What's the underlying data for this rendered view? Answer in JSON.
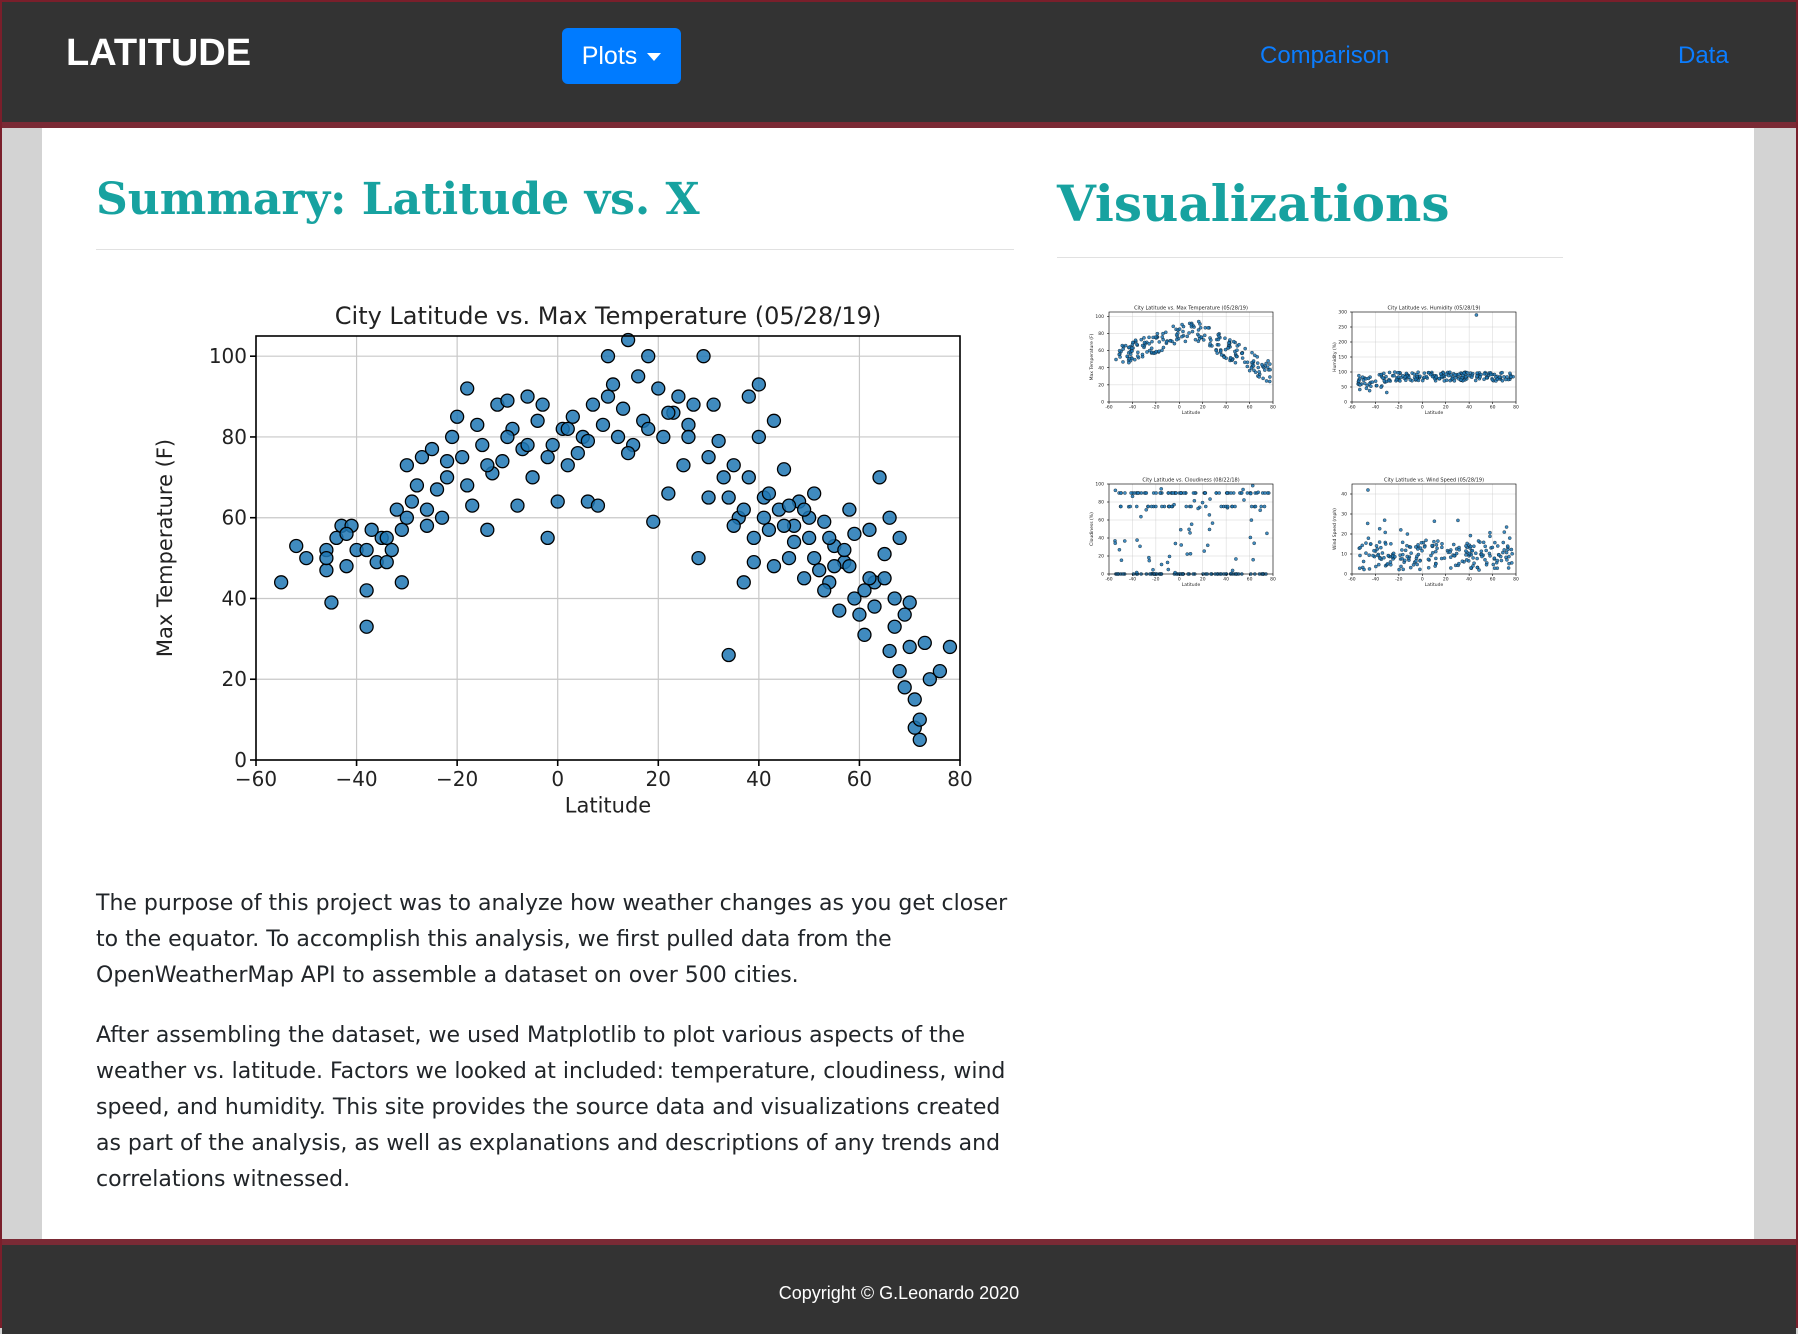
{
  "navbar": {
    "brand": "LATITUDE",
    "plots_label": "Plots",
    "links": [
      {
        "label": "Comparison"
      },
      {
        "label": "Data"
      }
    ]
  },
  "summary": {
    "title": "Summary: Latitude vs. X",
    "paragraphs": [
      "The purpose of this project was to analyze how weather changes as you get closer to the equator. To accomplish this analysis, we first pulled data from the OpenWeatherMap API to assemble a dataset on over 500 cities.",
      "After assembling the dataset, we used Matplotlib to plot various aspects of the weather vs. latitude. Factors we looked at included: temperature, cloudiness, wind speed, and humidity. This site provides the source data and visualizations created as part of the analysis, as well as explanations and descriptions of any trends and correlations witnessed."
    ]
  },
  "visualizations": {
    "title": "Visualizations"
  },
  "footer": {
    "copyright": "Copyright © G.Leonardo 2020"
  },
  "colors": {
    "accent": "#17a2a0",
    "navbar": "#333333",
    "link": "#0b7dff",
    "button": "#007bff",
    "marker": "#1f77b4"
  },
  "chart_data": [
    {
      "type": "scatter",
      "title": "City Latitude vs. Max Temperature (05/28/19)",
      "xlabel": "Latitude",
      "ylabel": "Max Temperature (F)",
      "xlim": [
        -60,
        80
      ],
      "ylim": [
        0,
        105
      ],
      "x_ticks": [
        -60,
        -40,
        -20,
        0,
        20,
        40,
        60,
        80
      ],
      "y_ticks": [
        0,
        20,
        40,
        60,
        80,
        100
      ],
      "x_tick_labels": [
        "−60",
        "−40",
        "−20",
        "0",
        "20",
        "40",
        "60",
        "80"
      ],
      "y_tick_labels": [
        "0",
        "20",
        "40",
        "60",
        "80",
        "100"
      ],
      "grid": true,
      "points": [
        [
          -55,
          44
        ],
        [
          -52,
          53
        ],
        [
          -50,
          50
        ],
        [
          -46,
          47
        ],
        [
          -46,
          52
        ],
        [
          -45,
          39
        ],
        [
          -44,
          55
        ],
        [
          -43,
          58
        ],
        [
          -42,
          48
        ],
        [
          -41,
          58
        ],
        [
          -40,
          52
        ],
        [
          -38,
          42
        ],
        [
          -38,
          33
        ],
        [
          -37,
          57
        ],
        [
          -36,
          49
        ],
        [
          -35,
          55
        ],
        [
          -34,
          49
        ],
        [
          -33,
          52
        ],
        [
          -32,
          62
        ],
        [
          -31,
          57
        ],
        [
          -31,
          44
        ],
        [
          -30,
          73
        ],
        [
          -29,
          64
        ],
        [
          -28,
          68
        ],
        [
          -27,
          75
        ],
        [
          -26,
          58
        ],
        [
          -25,
          77
        ],
        [
          -24,
          67
        ],
        [
          -23,
          60
        ],
        [
          -22,
          70
        ],
        [
          -21,
          80
        ],
        [
          -20,
          85
        ],
        [
          -19,
          75
        ],
        [
          -18,
          92
        ],
        [
          -17,
          63
        ],
        [
          -16,
          83
        ],
        [
          -15,
          78
        ],
        [
          -14,
          57
        ],
        [
          -13,
          71
        ],
        [
          -12,
          88
        ],
        [
          -11,
          74
        ],
        [
          -10,
          89
        ],
        [
          -9,
          82
        ],
        [
          -8,
          63
        ],
        [
          -7,
          77
        ],
        [
          -6,
          90
        ],
        [
          -5,
          70
        ],
        [
          -4,
          84
        ],
        [
          -3,
          88
        ],
        [
          -2,
          55
        ],
        [
          -1,
          78
        ],
        [
          0,
          64
        ],
        [
          1,
          82
        ],
        [
          2,
          73
        ],
        [
          3,
          85
        ],
        [
          4,
          76
        ],
        [
          5,
          80
        ],
        [
          6,
          64
        ],
        [
          7,
          88
        ],
        [
          8,
          63
        ],
        [
          9,
          83
        ],
        [
          10,
          100
        ],
        [
          11,
          93
        ],
        [
          12,
          80
        ],
        [
          13,
          87
        ],
        [
          14,
          104
        ],
        [
          15,
          78
        ],
        [
          16,
          95
        ],
        [
          17,
          84
        ],
        [
          18,
          100
        ],
        [
          19,
          59
        ],
        [
          20,
          92
        ],
        [
          21,
          80
        ],
        [
          22,
          66
        ],
        [
          23,
          86
        ],
        [
          24,
          90
        ],
        [
          25,
          73
        ],
        [
          26,
          83
        ],
        [
          27,
          88
        ],
        [
          28,
          50
        ],
        [
          29,
          100
        ],
        [
          30,
          65
        ],
        [
          31,
          88
        ],
        [
          32,
          79
        ],
        [
          33,
          70
        ],
        [
          34,
          26
        ],
        [
          35,
          73
        ],
        [
          36,
          60
        ],
        [
          37,
          44
        ],
        [
          38,
          90
        ],
        [
          39,
          49
        ],
        [
          40,
          80
        ],
        [
          40,
          93
        ],
        [
          41,
          65
        ],
        [
          42,
          57
        ],
        [
          43,
          84
        ],
        [
          44,
          62
        ],
        [
          45,
          72
        ],
        [
          46,
          50
        ],
        [
          47,
          58
        ],
        [
          48,
          64
        ],
        [
          49,
          45
        ],
        [
          50,
          55
        ],
        [
          51,
          66
        ],
        [
          52,
          47
        ],
        [
          53,
          59
        ],
        [
          54,
          44
        ],
        [
          55,
          53
        ],
        [
          56,
          37
        ],
        [
          57,
          49
        ],
        [
          58,
          62
        ],
        [
          59,
          40
        ],
        [
          60,
          36
        ],
        [
          61,
          31
        ],
        [
          62,
          57
        ],
        [
          63,
          44
        ],
        [
          64,
          70
        ],
        [
          65,
          51
        ],
        [
          66,
          27
        ],
        [
          67,
          33
        ],
        [
          68,
          22
        ],
        [
          69,
          36
        ],
        [
          70,
          28
        ],
        [
          71,
          15
        ],
        [
          72,
          5
        ],
        [
          73,
          29
        ],
        [
          74,
          20
        ],
        [
          76,
          22
        ],
        [
          78,
          28
        ],
        [
          66,
          60
        ],
        [
          68,
          55
        ],
        [
          70,
          39
        ],
        [
          62,
          45
        ],
        [
          58,
          48
        ],
        [
          54,
          55
        ],
        [
          50,
          60
        ],
        [
          46,
          63
        ],
        [
          42,
          66
        ],
        [
          38,
          70
        ],
        [
          34,
          65
        ],
        [
          30,
          75
        ],
        [
          26,
          80
        ],
        [
          22,
          86
        ],
        [
          18,
          82
        ],
        [
          14,
          76
        ],
        [
          10,
          90
        ],
        [
          6,
          79
        ],
        [
          2,
          82
        ],
        [
          -2,
          75
        ],
        [
          -6,
          78
        ],
        [
          -10,
          80
        ],
        [
          -14,
          73
        ],
        [
          -18,
          68
        ],
        [
          -22,
          74
        ],
        [
          -26,
          62
        ],
        [
          -30,
          60
        ],
        [
          -34,
          55
        ],
        [
          -38,
          52
        ],
        [
          -42,
          56
        ],
        [
          -46,
          50
        ],
        [
          71,
          8
        ],
        [
          72,
          10
        ],
        [
          69,
          18
        ],
        [
          67,
          40
        ],
        [
          65,
          45
        ],
        [
          63,
          38
        ],
        [
          61,
          42
        ],
        [
          59,
          56
        ],
        [
          57,
          52
        ],
        [
          55,
          48
        ],
        [
          53,
          42
        ],
        [
          51,
          50
        ],
        [
          49,
          62
        ],
        [
          47,
          54
        ],
        [
          45,
          58
        ],
        [
          43,
          48
        ],
        [
          41,
          60
        ],
        [
          39,
          55
        ],
        [
          37,
          62
        ],
        [
          35,
          58
        ]
      ]
    },
    {
      "type": "scatter",
      "title": "City Latitude vs. Max Temperature (05/28/19)",
      "xlabel": "Latitude",
      "ylabel": "Max Temperature (F)",
      "xlim": [
        -60,
        80
      ],
      "ylim": [
        0,
        105
      ],
      "x_ticks": [
        -60,
        -40,
        -20,
        0,
        20,
        40,
        60,
        80
      ],
      "y_ticks": [
        0,
        20,
        40,
        60,
        80,
        100
      ],
      "grid": true
    },
    {
      "type": "scatter",
      "title": "City Latitude vs. Humidity (05/28/19)",
      "xlabel": "Latitude",
      "ylabel": "Humidity (%)",
      "xlim": [
        -60,
        80
      ],
      "ylim": [
        0,
        300
      ],
      "x_ticks": [
        -60,
        -40,
        -20,
        0,
        20,
        40,
        60,
        80
      ],
      "y_ticks": [
        0,
        50,
        100,
        150,
        200,
        250,
        300
      ],
      "grid": true
    },
    {
      "type": "scatter",
      "title": "City Latitude vs. Cloudiness (08/22/18)",
      "xlabel": "Latitude",
      "ylabel": "Cloudiness (%)",
      "xlim": [
        -60,
        80
      ],
      "ylim": [
        0,
        100
      ],
      "x_ticks": [
        -60,
        -40,
        -20,
        0,
        20,
        40,
        60,
        80
      ],
      "y_ticks": [
        0,
        20,
        40,
        60,
        80,
        100
      ],
      "grid": true
    },
    {
      "type": "scatter",
      "title": "City Latitude vs. Wind Speed (05/28/19)",
      "xlabel": "Latitude",
      "ylabel": "Wind Speed (mph)",
      "xlim": [
        -60,
        80
      ],
      "ylim": [
        0,
        45
      ],
      "x_ticks": [
        -60,
        -40,
        -20,
        0,
        20,
        40,
        60,
        80
      ],
      "y_ticks": [
        0,
        10,
        20,
        30,
        40
      ],
      "grid": true
    }
  ]
}
